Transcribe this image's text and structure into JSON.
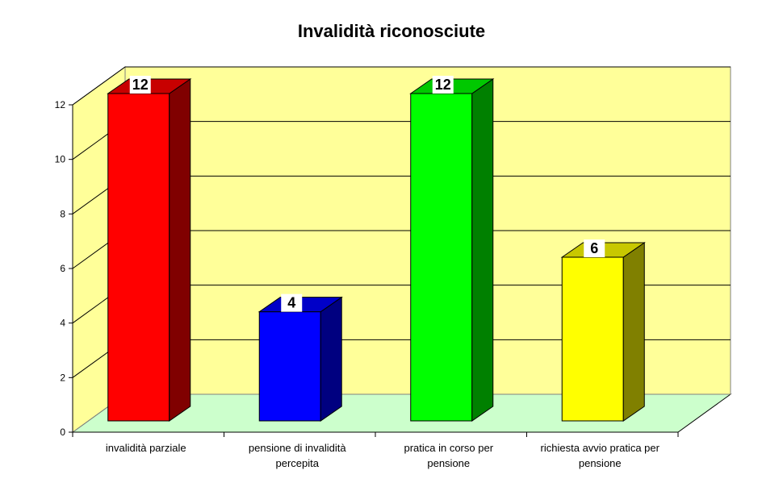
{
  "chart_data": {
    "type": "bar",
    "title": "Invalidità riconosciute",
    "categories": [
      [
        "invalidità parziale"
      ],
      [
        "pensione di invalidità",
        "percepita"
      ],
      [
        "pratica in corso per",
        "pensione"
      ],
      [
        "richiesta avvio pratica per",
        "pensione"
      ]
    ],
    "values": [
      12,
      4,
      12,
      6
    ],
    "ylim": [
      0,
      12
    ],
    "yticks": [
      0,
      2,
      4,
      6,
      8,
      10,
      12
    ],
    "grid": true,
    "legend": "none",
    "colors": {
      "front": [
        "#ff0000",
        "#0000ff",
        "#00ff00",
        "#ffff00"
      ],
      "side": [
        "#800000",
        "#000080",
        "#008000",
        "#808000"
      ],
      "top": [
        "#c80000",
        "#0000c8",
        "#00c800",
        "#c8c800"
      ],
      "wall": "#ffff99",
      "floor": "#ccffcc",
      "label_box": "#ffffff"
    }
  }
}
